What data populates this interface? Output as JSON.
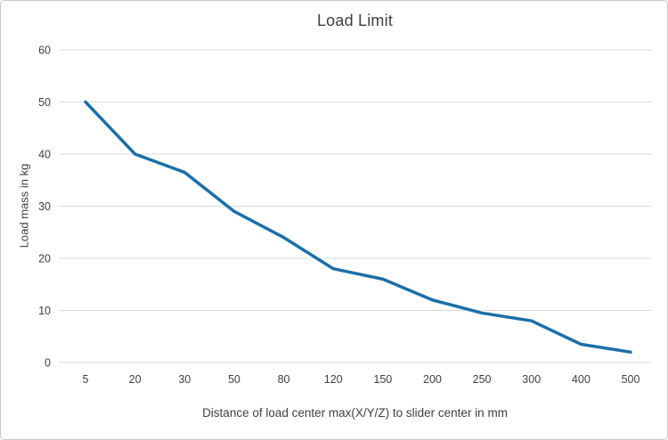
{
  "chart_data": {
    "type": "line",
    "title": "Load Limit",
    "xlabel": "Distance of load center max(X/Y/Z) to slider center in mm",
    "ylabel": "Load mass in kg",
    "categories": [
      5,
      20,
      30,
      50,
      80,
      120,
      150,
      200,
      250,
      300,
      400,
      500
    ],
    "series": [
      {
        "name": "Load limit",
        "values": [
          50,
          40,
          36.5,
          29,
          24,
          18,
          16,
          12,
          9.5,
          8,
          3.5,
          2
        ]
      }
    ],
    "ylim": [
      0,
      60
    ],
    "ytick_interval": 10,
    "grid": true,
    "legend_position": "none",
    "line_color": "#1a6fa9",
    "grid_color": "#d9d9d9",
    "text_color": "#404040",
    "background_color": "#ffffff"
  }
}
